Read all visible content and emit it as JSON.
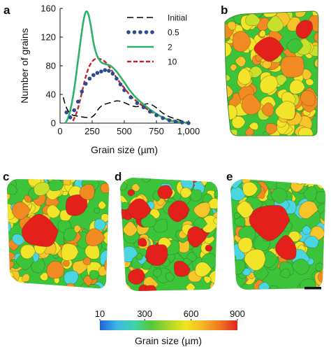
{
  "panels": {
    "a": "a",
    "b": "b",
    "c": "c",
    "d": "d",
    "e": "e"
  },
  "chart_data": {
    "type": "line",
    "title": "",
    "xlabel": "Grain size (µm)",
    "ylabel": "Number of grains",
    "xlim": [
      0,
      1000
    ],
    "ylim": [
      0,
      160
    ],
    "x_ticks": [
      "0",
      "250",
      "500",
      "750",
      "1,000"
    ],
    "y_ticks": [
      "0",
      "40",
      "80",
      "120",
      "160"
    ],
    "legend_position": "top-right",
    "series": [
      {
        "name": "Initial",
        "color": "#000000",
        "style": "dashed",
        "x": [
          25,
          40,
          60,
          80,
          100,
          130,
          160,
          200,
          240,
          270,
          300,
          330,
          360,
          400,
          440,
          480,
          520,
          560,
          600,
          640,
          680,
          720,
          760,
          800,
          850,
          900,
          950,
          1000
        ],
        "y": [
          36,
          26,
          18,
          14,
          11,
          10,
          9,
          8,
          8,
          12,
          20,
          25,
          27,
          29,
          31,
          30,
          27,
          24,
          23,
          25,
          27,
          25,
          20,
          14,
          9,
          6,
          3,
          1
        ]
      },
      {
        "name": "0.5",
        "color": "#2a4d8f",
        "style": "dotted",
        "x": [
          50,
          80,
          110,
          140,
          170,
          200,
          230,
          260,
          290,
          320,
          350,
          380,
          410,
          440,
          470,
          500,
          550,
          600,
          650,
          700,
          750,
          800,
          850,
          900,
          950,
          1000
        ],
        "y": [
          15,
          8,
          18,
          30,
          44,
          55,
          62,
          67,
          70,
          72,
          74,
          73,
          69,
          62,
          54,
          46,
          36,
          28,
          22,
          16,
          11,
          7,
          4,
          2,
          1,
          0
        ]
      },
      {
        "name": "2",
        "color": "#2db368",
        "style": "solid",
        "x": [
          40,
          60,
          80,
          100,
          120,
          140,
          160,
          180,
          200,
          220,
          240,
          260,
          280,
          300,
          320,
          340,
          360,
          380,
          400,
          430,
          460,
          500,
          550,
          600,
          650,
          700,
          750,
          800,
          850,
          900,
          950,
          1000
        ],
        "y": [
          0,
          6,
          18,
          36,
          60,
          88,
          115,
          140,
          155,
          152,
          135,
          113,
          98,
          90,
          85,
          83,
          82,
          81,
          79,
          74,
          67,
          57,
          44,
          34,
          26,
          19,
          13,
          8,
          4,
          2,
          1,
          0
        ]
      },
      {
        "name": "10",
        "color": "#c0272d",
        "style": "dashed",
        "x": [
          100,
          130,
          160,
          190,
          220,
          250,
          280,
          300,
          320,
          340,
          370,
          400,
          430,
          460,
          500,
          550,
          600,
          650,
          700,
          750,
          800,
          850,
          900,
          950,
          1000
        ],
        "y": [
          3,
          15,
          35,
          58,
          76,
          86,
          90,
          90,
          89,
          87,
          82,
          74,
          66,
          58,
          49,
          38,
          30,
          23,
          17,
          12,
          8,
          5,
          3,
          1,
          0
        ]
      }
    ]
  },
  "colorbar": {
    "title": "Grain size (µm)",
    "ticks": [
      "10",
      "300",
      "600",
      "900"
    ],
    "range": [
      10,
      900
    ],
    "tick_values": [
      10,
      300,
      600,
      900
    ],
    "stops": [
      "#1f63d6",
      "#3fb7e8",
      "#3ed3a8",
      "#54c93a",
      "#a7d629",
      "#f2e51e",
      "#f6b324",
      "#f0761f",
      "#e0271c"
    ]
  },
  "grain_palette": {
    "red": "#e3201b",
    "orange": "#f08a21",
    "dark_orange": "#f57a1a",
    "yellow": "#f2e428",
    "yellow_green": "#c7e02b",
    "green": "#3bc43a",
    "cyan": "#49d6e0",
    "gold": "#f7c52a"
  }
}
